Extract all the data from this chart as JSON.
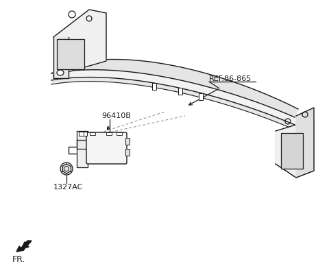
{
  "bg_color": "#ffffff",
  "line_color": "#1a1a1a",
  "light_gray": "#d8d8d8",
  "mid_gray": "#c0c0c0",
  "label_ref": "REF.86-865",
  "label_96410B": "96410B",
  "label_1327AC": "1327AC",
  "label_fr": "FR.",
  "fig_width": 4.8,
  "fig_height": 4.02,
  "dpi": 100
}
